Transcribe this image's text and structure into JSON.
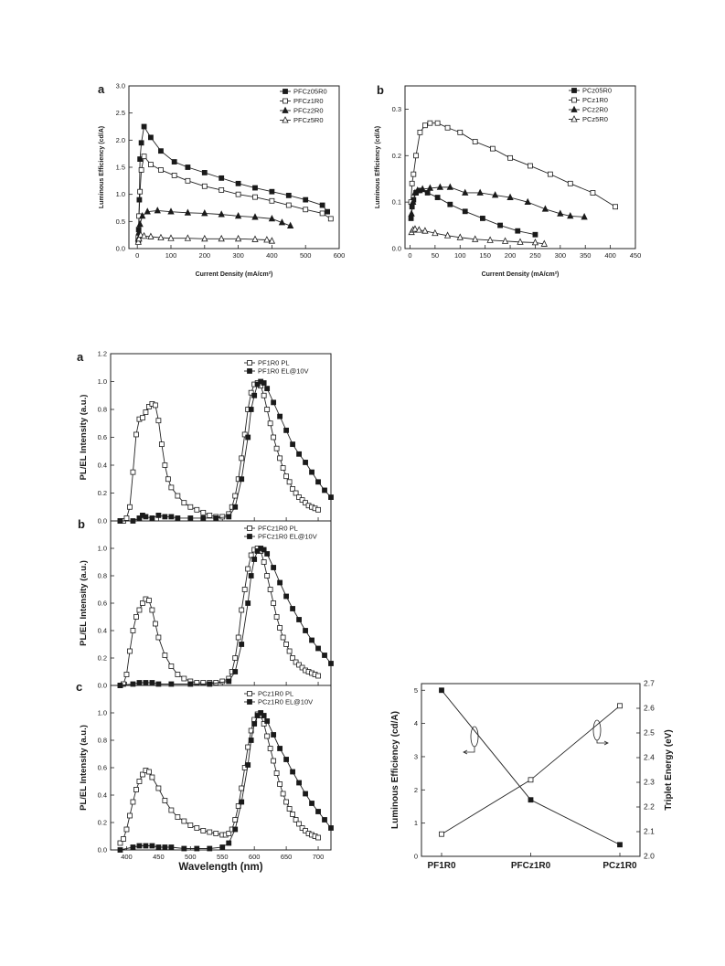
{
  "chart_data": [
    {
      "id": "p1",
      "type": "line",
      "panel_label": "a",
      "xlabel": "Current Density (mA/cm²)",
      "ylabel": "Luminous Efficiency (cd/A)",
      "xlim": [
        -25,
        600
      ],
      "ylim": [
        0,
        3.0
      ],
      "xticks": [
        0,
        100,
        200,
        300,
        400,
        500,
        600
      ],
      "yticks": [
        0.0,
        0.5,
        1.0,
        1.5,
        2.0,
        2.5,
        3.0
      ],
      "ytick_decimals": 1,
      "legend_position": "top-right",
      "series": [
        {
          "name": "PFCz05R0",
          "marker": "sq",
          "filled": true,
          "x": [
            3,
            4,
            6,
            8,
            12,
            20,
            40,
            70,
            110,
            150,
            200,
            250,
            300,
            350,
            400,
            450,
            500,
            550,
            565
          ],
          "y": [
            0.15,
            0.35,
            0.9,
            1.65,
            1.95,
            2.25,
            2.05,
            1.8,
            1.6,
            1.5,
            1.4,
            1.3,
            1.2,
            1.12,
            1.05,
            0.98,
            0.9,
            0.8,
            0.68
          ]
        },
        {
          "name": "PFCz1R0",
          "marker": "sq",
          "filled": false,
          "x": [
            3,
            5,
            8,
            12,
            20,
            40,
            70,
            110,
            150,
            200,
            250,
            300,
            350,
            400,
            450,
            500,
            550,
            575
          ],
          "y": [
            0.2,
            0.6,
            1.05,
            1.45,
            1.7,
            1.55,
            1.45,
            1.35,
            1.25,
            1.15,
            1.08,
            1.0,
            0.95,
            0.88,
            0.8,
            0.72,
            0.65,
            0.55
          ]
        },
        {
          "name": "PFCz2R0",
          "marker": "tri",
          "filled": true,
          "x": [
            3,
            5,
            8,
            15,
            30,
            60,
            100,
            150,
            200,
            250,
            300,
            350,
            400,
            430,
            455
          ],
          "y": [
            0.18,
            0.3,
            0.45,
            0.6,
            0.68,
            0.7,
            0.68,
            0.66,
            0.65,
            0.63,
            0.6,
            0.58,
            0.55,
            0.48,
            0.42
          ]
        },
        {
          "name": "PFCz5R0",
          "marker": "tri",
          "filled": false,
          "x": [
            3,
            5,
            10,
            20,
            40,
            70,
            100,
            150,
            200,
            250,
            300,
            350,
            385,
            400
          ],
          "y": [
            0.12,
            0.18,
            0.25,
            0.23,
            0.22,
            0.2,
            0.19,
            0.19,
            0.18,
            0.18,
            0.18,
            0.17,
            0.16,
            0.14
          ]
        }
      ]
    },
    {
      "id": "p2",
      "type": "line",
      "panel_label": "b",
      "xlabel": "Current Density (mA/cm²)",
      "ylabel": "Luminous Efficiency (cd/A)",
      "xlim": [
        -10,
        450
      ],
      "ylim": [
        0,
        0.35
      ],
      "xticks": [
        0,
        50,
        100,
        150,
        200,
        250,
        300,
        350,
        400,
        450
      ],
      "yticks": [
        0.0,
        0.1,
        0.2,
        0.3
      ],
      "ytick_decimals": 1,
      "legend_position": "top-right",
      "series": [
        {
          "name": "PCz05R0",
          "marker": "sq",
          "filled": true,
          "x": [
            2,
            4,
            7,
            12,
            20,
            35,
            55,
            80,
            110,
            145,
            180,
            215,
            250
          ],
          "y": [
            0.065,
            0.09,
            0.105,
            0.12,
            0.125,
            0.12,
            0.11,
            0.095,
            0.08,
            0.065,
            0.05,
            0.038,
            0.03
          ]
        },
        {
          "name": "PCz1R0",
          "marker": "sq",
          "filled": false,
          "x": [
            2,
            4,
            7,
            12,
            20,
            30,
            40,
            55,
            75,
            100,
            130,
            165,
            200,
            240,
            280,
            320,
            365,
            410
          ],
          "y": [
            0.1,
            0.14,
            0.16,
            0.2,
            0.25,
            0.265,
            0.27,
            0.27,
            0.26,
            0.25,
            0.23,
            0.215,
            0.195,
            0.178,
            0.16,
            0.14,
            0.12,
            0.09
          ]
        },
        {
          "name": "PCz2R0",
          "marker": "tri",
          "filled": true,
          "x": [
            3,
            6,
            10,
            15,
            25,
            40,
            60,
            80,
            110,
            140,
            170,
            200,
            235,
            270,
            300,
            320,
            348
          ],
          "y": [
            0.075,
            0.1,
            0.12,
            0.125,
            0.128,
            0.13,
            0.132,
            0.132,
            0.12,
            0.12,
            0.115,
            0.11,
            0.1,
            0.085,
            0.075,
            0.07,
            0.068
          ]
        },
        {
          "name": "PCz5R0",
          "marker": "tri",
          "filled": false,
          "x": [
            3,
            6,
            10,
            18,
            30,
            50,
            75,
            100,
            130,
            160,
            190,
            220,
            250,
            268
          ],
          "y": [
            0.035,
            0.04,
            0.042,
            0.04,
            0.038,
            0.033,
            0.028,
            0.024,
            0.02,
            0.018,
            0.016,
            0.014,
            0.013,
            0.01
          ]
        }
      ]
    },
    {
      "id": "p3",
      "type": "line",
      "panel_label": "a",
      "xlabel": "",
      "ylabel": "PL/EL Intensity (a.u.)",
      "xlim": [
        375,
        720
      ],
      "ylim": [
        0,
        1.2
      ],
      "yticks": [
        0.0,
        0.2,
        0.4,
        0.6,
        0.8,
        1.0,
        1.2
      ],
      "ytick_decimals": 1,
      "legend_position": "top-right",
      "series": [
        {
          "name": "PF1R0 PL",
          "marker": "sq",
          "filled": false,
          "x": [
            390,
            395,
            400,
            405,
            410,
            415,
            420,
            425,
            430,
            435,
            440,
            445,
            450,
            455,
            460,
            465,
            470,
            480,
            490,
            500,
            510,
            520,
            530,
            540,
            550,
            560,
            565,
            570,
            575,
            580,
            585,
            590,
            595,
            600,
            605,
            610,
            615,
            620,
            625,
            630,
            635,
            640,
            645,
            650,
            655,
            660,
            665,
            670,
            675,
            680,
            685,
            690,
            695,
            700
          ],
          "y": [
            0.0,
            0.0,
            0.02,
            0.1,
            0.35,
            0.62,
            0.73,
            0.74,
            0.78,
            0.82,
            0.84,
            0.83,
            0.72,
            0.55,
            0.4,
            0.3,
            0.24,
            0.18,
            0.13,
            0.1,
            0.08,
            0.06,
            0.04,
            0.03,
            0.03,
            0.05,
            0.1,
            0.18,
            0.3,
            0.45,
            0.62,
            0.8,
            0.92,
            0.98,
            0.99,
            0.97,
            0.9,
            0.8,
            0.7,
            0.6,
            0.52,
            0.45,
            0.38,
            0.32,
            0.28,
            0.23,
            0.2,
            0.17,
            0.15,
            0.13,
            0.11,
            0.1,
            0.09,
            0.08
          ]
        },
        {
          "name": "PF1R0 EL@10V",
          "marker": "sq",
          "filled": true,
          "x": [
            390,
            410,
            420,
            425,
            430,
            440,
            450,
            460,
            470,
            480,
            500,
            520,
            540,
            560,
            570,
            580,
            590,
            595,
            600,
            605,
            610,
            615,
            620,
            630,
            640,
            650,
            660,
            670,
            680,
            690,
            700,
            710,
            720
          ],
          "y": [
            0.0,
            0.0,
            0.02,
            0.04,
            0.03,
            0.02,
            0.04,
            0.03,
            0.03,
            0.02,
            0.02,
            0.02,
            0.02,
            0.03,
            0.1,
            0.3,
            0.6,
            0.8,
            0.9,
            0.98,
            1.0,
            0.99,
            0.95,
            0.85,
            0.75,
            0.65,
            0.55,
            0.48,
            0.42,
            0.35,
            0.28,
            0.22,
            0.17
          ]
        }
      ]
    },
    {
      "id": "p4",
      "type": "line",
      "panel_label": "b",
      "xlabel": "",
      "ylabel": "PL/EL Intensity (a.u.)",
      "xlim": [
        375,
        720
      ],
      "ylim": [
        0,
        1.2
      ],
      "yticks": [
        0.0,
        0.2,
        0.4,
        0.6,
        0.8,
        1.0
      ],
      "ytick_decimals": 1,
      "legend_position": "top-right",
      "series": [
        {
          "name": "PFCz1R0 PL",
          "marker": "sq",
          "filled": false,
          "x": [
            390,
            395,
            400,
            405,
            410,
            415,
            420,
            425,
            430,
            435,
            440,
            445,
            450,
            460,
            470,
            480,
            490,
            500,
            510,
            520,
            530,
            540,
            550,
            560,
            565,
            570,
            575,
            580,
            585,
            590,
            595,
            600,
            605,
            610,
            615,
            620,
            625,
            630,
            635,
            640,
            645,
            650,
            655,
            660,
            665,
            670,
            675,
            680,
            685,
            690,
            695,
            700
          ],
          "y": [
            0.0,
            0.01,
            0.08,
            0.25,
            0.4,
            0.5,
            0.55,
            0.6,
            0.63,
            0.62,
            0.55,
            0.45,
            0.35,
            0.22,
            0.14,
            0.08,
            0.05,
            0.03,
            0.02,
            0.02,
            0.02,
            0.02,
            0.03,
            0.05,
            0.1,
            0.2,
            0.35,
            0.55,
            0.7,
            0.85,
            0.95,
            0.99,
            1.0,
            0.98,
            0.9,
            0.8,
            0.7,
            0.6,
            0.5,
            0.42,
            0.35,
            0.3,
            0.25,
            0.2,
            0.17,
            0.15,
            0.13,
            0.11,
            0.1,
            0.09,
            0.08,
            0.07
          ]
        },
        {
          "name": "PFCz1R0 EL@10V",
          "marker": "sq",
          "filled": true,
          "x": [
            390,
            410,
            420,
            430,
            440,
            450,
            470,
            500,
            530,
            560,
            570,
            580,
            590,
            595,
            600,
            605,
            610,
            615,
            620,
            630,
            640,
            650,
            660,
            670,
            680,
            690,
            700,
            710,
            720
          ],
          "y": [
            0.0,
            0.01,
            0.02,
            0.02,
            0.02,
            0.01,
            0.01,
            0.01,
            0.01,
            0.03,
            0.1,
            0.3,
            0.6,
            0.8,
            0.92,
            0.98,
            1.0,
            0.99,
            0.96,
            0.86,
            0.75,
            0.65,
            0.56,
            0.48,
            0.4,
            0.33,
            0.27,
            0.22,
            0.16
          ]
        }
      ]
    },
    {
      "id": "p5",
      "type": "line",
      "panel_label": "c",
      "xlabel": "Wavelength (nm)",
      "ylabel": "PL/EL Intensity (a.u.)",
      "xlim": [
        375,
        720
      ],
      "ylim": [
        0,
        1.2
      ],
      "xticks": [
        400,
        450,
        500,
        550,
        600,
        650,
        700
      ],
      "yticks": [
        0.0,
        0.2,
        0.4,
        0.6,
        0.8,
        1.0
      ],
      "ytick_decimals": 1,
      "legend_position": "top-right",
      "series": [
        {
          "name": "PCz1R0 PL",
          "marker": "sq",
          "filled": false,
          "x": [
            390,
            395,
            400,
            405,
            410,
            415,
            420,
            425,
            430,
            435,
            440,
            450,
            460,
            470,
            480,
            490,
            500,
            510,
            520,
            530,
            540,
            550,
            555,
            560,
            565,
            570,
            575,
            580,
            585,
            590,
            595,
            600,
            605,
            610,
            615,
            620,
            625,
            630,
            635,
            640,
            645,
            650,
            655,
            660,
            665,
            670,
            675,
            680,
            685,
            690,
            695,
            700
          ],
          "y": [
            0.05,
            0.08,
            0.15,
            0.25,
            0.35,
            0.44,
            0.5,
            0.55,
            0.58,
            0.57,
            0.53,
            0.45,
            0.36,
            0.29,
            0.24,
            0.21,
            0.18,
            0.16,
            0.14,
            0.13,
            0.12,
            0.11,
            0.11,
            0.12,
            0.15,
            0.22,
            0.32,
            0.45,
            0.6,
            0.75,
            0.87,
            0.95,
            0.99,
            0.98,
            0.92,
            0.83,
            0.74,
            0.65,
            0.56,
            0.48,
            0.41,
            0.35,
            0.3,
            0.26,
            0.22,
            0.19,
            0.16,
            0.14,
            0.12,
            0.11,
            0.1,
            0.09
          ]
        },
        {
          "name": "PCz1R0 EL@10V",
          "marker": "sq",
          "filled": true,
          "x": [
            390,
            410,
            420,
            430,
            440,
            450,
            460,
            470,
            490,
            510,
            530,
            550,
            560,
            570,
            580,
            590,
            595,
            600,
            605,
            610,
            615,
            620,
            630,
            640,
            650,
            660,
            670,
            680,
            690,
            700,
            710,
            720
          ],
          "y": [
            0.0,
            0.02,
            0.03,
            0.03,
            0.03,
            0.02,
            0.02,
            0.02,
            0.01,
            0.01,
            0.01,
            0.02,
            0.05,
            0.15,
            0.35,
            0.62,
            0.8,
            0.92,
            0.98,
            1.0,
            0.98,
            0.94,
            0.84,
            0.74,
            0.66,
            0.57,
            0.49,
            0.41,
            0.34,
            0.28,
            0.22,
            0.16
          ]
        }
      ]
    },
    {
      "id": "p6",
      "type": "line",
      "panel_label": "",
      "xlabel": "",
      "ylabel": "Luminous Efficiency (cd/A)",
      "y2label": "Triplet Energy (eV)",
      "categories": [
        "PF1R0",
        "PFCz1R0",
        "PCz1R0"
      ],
      "ylim": [
        0,
        5.2
      ],
      "yticks": [
        0,
        1,
        2,
        3,
        4,
        5
      ],
      "ytick_decimals": 0,
      "y2lim": [
        2.0,
        2.7
      ],
      "y2ticks": [
        2.0,
        2.1,
        2.2,
        2.3,
        2.4,
        2.5,
        2.6,
        2.7
      ],
      "legend_position": "none",
      "series": [
        {
          "name": "",
          "axis": "left",
          "marker": "sq",
          "filled": true,
          "x_index": [
            0,
            1,
            2
          ],
          "y": [
            5.0,
            1.7,
            0.35
          ]
        },
        {
          "name": "",
          "axis": "right",
          "marker": "sq",
          "filled": false,
          "x_index": [
            0,
            1,
            2
          ],
          "y": [
            2.09,
            2.31,
            2.61
          ]
        }
      ]
    }
  ]
}
